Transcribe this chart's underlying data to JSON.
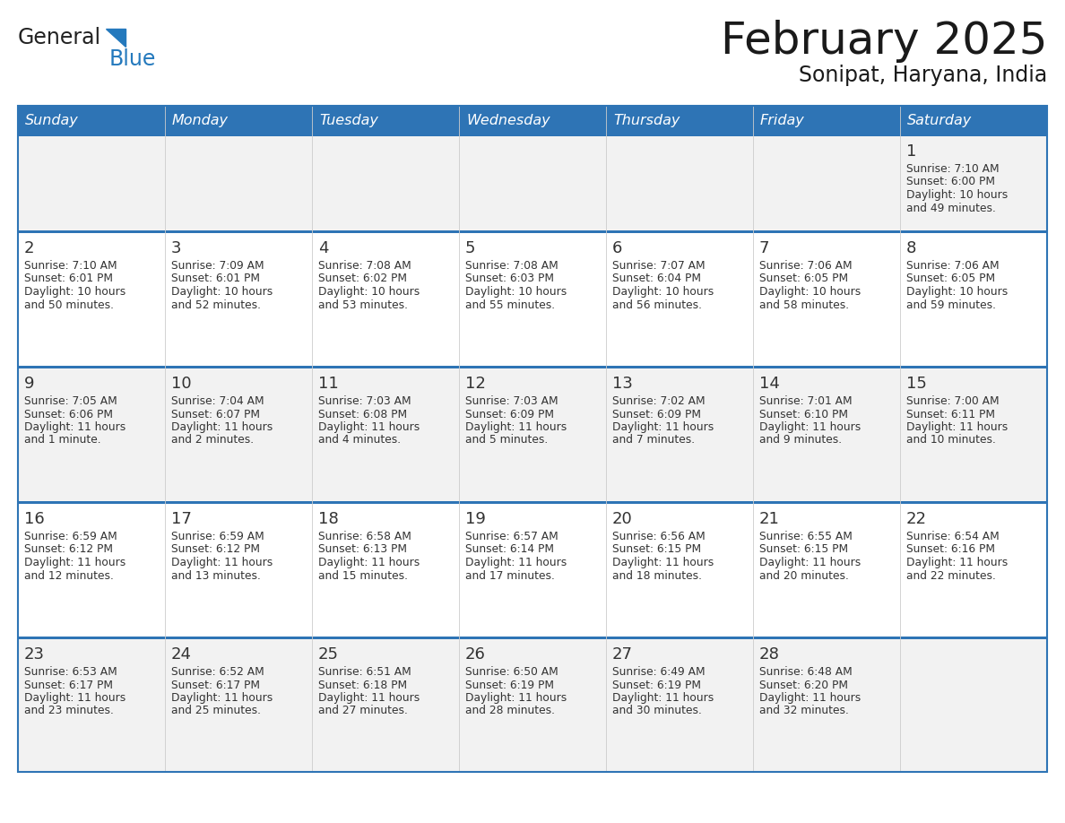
{
  "title": "February 2025",
  "subtitle": "Sonipat, Haryana, India",
  "header_bg": "#2E74B5",
  "header_text_color": "#FFFFFF",
  "row_bg_odd": "#F2F2F2",
  "row_bg_even": "#FFFFFF",
  "separator_color": "#2E74B5",
  "day_headers": [
    "Sunday",
    "Monday",
    "Tuesday",
    "Wednesday",
    "Thursday",
    "Friday",
    "Saturday"
  ],
  "days": [
    {
      "day": 1,
      "col": 6,
      "row": 0,
      "sunrise": "7:10 AM",
      "sunset": "6:00 PM",
      "daylight_line1": "10 hours",
      "daylight_line2": "and 49 minutes."
    },
    {
      "day": 2,
      "col": 0,
      "row": 1,
      "sunrise": "7:10 AM",
      "sunset": "6:01 PM",
      "daylight_line1": "10 hours",
      "daylight_line2": "and 50 minutes."
    },
    {
      "day": 3,
      "col": 1,
      "row": 1,
      "sunrise": "7:09 AM",
      "sunset": "6:01 PM",
      "daylight_line1": "10 hours",
      "daylight_line2": "and 52 minutes."
    },
    {
      "day": 4,
      "col": 2,
      "row": 1,
      "sunrise": "7:08 AM",
      "sunset": "6:02 PM",
      "daylight_line1": "10 hours",
      "daylight_line2": "and 53 minutes."
    },
    {
      "day": 5,
      "col": 3,
      "row": 1,
      "sunrise": "7:08 AM",
      "sunset": "6:03 PM",
      "daylight_line1": "10 hours",
      "daylight_line2": "and 55 minutes."
    },
    {
      "day": 6,
      "col": 4,
      "row": 1,
      "sunrise": "7:07 AM",
      "sunset": "6:04 PM",
      "daylight_line1": "10 hours",
      "daylight_line2": "and 56 minutes."
    },
    {
      "day": 7,
      "col": 5,
      "row": 1,
      "sunrise": "7:06 AM",
      "sunset": "6:05 PM",
      "daylight_line1": "10 hours",
      "daylight_line2": "and 58 minutes."
    },
    {
      "day": 8,
      "col": 6,
      "row": 1,
      "sunrise": "7:06 AM",
      "sunset": "6:05 PM",
      "daylight_line1": "10 hours",
      "daylight_line2": "and 59 minutes."
    },
    {
      "day": 9,
      "col": 0,
      "row": 2,
      "sunrise": "7:05 AM",
      "sunset": "6:06 PM",
      "daylight_line1": "11 hours",
      "daylight_line2": "and 1 minute."
    },
    {
      "day": 10,
      "col": 1,
      "row": 2,
      "sunrise": "7:04 AM",
      "sunset": "6:07 PM",
      "daylight_line1": "11 hours",
      "daylight_line2": "and 2 minutes."
    },
    {
      "day": 11,
      "col": 2,
      "row": 2,
      "sunrise": "7:03 AM",
      "sunset": "6:08 PM",
      "daylight_line1": "11 hours",
      "daylight_line2": "and 4 minutes."
    },
    {
      "day": 12,
      "col": 3,
      "row": 2,
      "sunrise": "7:03 AM",
      "sunset": "6:09 PM",
      "daylight_line1": "11 hours",
      "daylight_line2": "and 5 minutes."
    },
    {
      "day": 13,
      "col": 4,
      "row": 2,
      "sunrise": "7:02 AM",
      "sunset": "6:09 PM",
      "daylight_line1": "11 hours",
      "daylight_line2": "and 7 minutes."
    },
    {
      "day": 14,
      "col": 5,
      "row": 2,
      "sunrise": "7:01 AM",
      "sunset": "6:10 PM",
      "daylight_line1": "11 hours",
      "daylight_line2": "and 9 minutes."
    },
    {
      "day": 15,
      "col": 6,
      "row": 2,
      "sunrise": "7:00 AM",
      "sunset": "6:11 PM",
      "daylight_line1": "11 hours",
      "daylight_line2": "and 10 minutes."
    },
    {
      "day": 16,
      "col": 0,
      "row": 3,
      "sunrise": "6:59 AM",
      "sunset": "6:12 PM",
      "daylight_line1": "11 hours",
      "daylight_line2": "and 12 minutes."
    },
    {
      "day": 17,
      "col": 1,
      "row": 3,
      "sunrise": "6:59 AM",
      "sunset": "6:12 PM",
      "daylight_line1": "11 hours",
      "daylight_line2": "and 13 minutes."
    },
    {
      "day": 18,
      "col": 2,
      "row": 3,
      "sunrise": "6:58 AM",
      "sunset": "6:13 PM",
      "daylight_line1": "11 hours",
      "daylight_line2": "and 15 minutes."
    },
    {
      "day": 19,
      "col": 3,
      "row": 3,
      "sunrise": "6:57 AM",
      "sunset": "6:14 PM",
      "daylight_line1": "11 hours",
      "daylight_line2": "and 17 minutes."
    },
    {
      "day": 20,
      "col": 4,
      "row": 3,
      "sunrise": "6:56 AM",
      "sunset": "6:15 PM",
      "daylight_line1": "11 hours",
      "daylight_line2": "and 18 minutes."
    },
    {
      "day": 21,
      "col": 5,
      "row": 3,
      "sunrise": "6:55 AM",
      "sunset": "6:15 PM",
      "daylight_line1": "11 hours",
      "daylight_line2": "and 20 minutes."
    },
    {
      "day": 22,
      "col": 6,
      "row": 3,
      "sunrise": "6:54 AM",
      "sunset": "6:16 PM",
      "daylight_line1": "11 hours",
      "daylight_line2": "and 22 minutes."
    },
    {
      "day": 23,
      "col": 0,
      "row": 4,
      "sunrise": "6:53 AM",
      "sunset": "6:17 PM",
      "daylight_line1": "11 hours",
      "daylight_line2": "and 23 minutes."
    },
    {
      "day": 24,
      "col": 1,
      "row": 4,
      "sunrise": "6:52 AM",
      "sunset": "6:17 PM",
      "daylight_line1": "11 hours",
      "daylight_line2": "and 25 minutes."
    },
    {
      "day": 25,
      "col": 2,
      "row": 4,
      "sunrise": "6:51 AM",
      "sunset": "6:18 PM",
      "daylight_line1": "11 hours",
      "daylight_line2": "and 27 minutes."
    },
    {
      "day": 26,
      "col": 3,
      "row": 4,
      "sunrise": "6:50 AM",
      "sunset": "6:19 PM",
      "daylight_line1": "11 hours",
      "daylight_line2": "and 28 minutes."
    },
    {
      "day": 27,
      "col": 4,
      "row": 4,
      "sunrise": "6:49 AM",
      "sunset": "6:19 PM",
      "daylight_line1": "11 hours",
      "daylight_line2": "and 30 minutes."
    },
    {
      "day": 28,
      "col": 5,
      "row": 4,
      "sunrise": "6:48 AM",
      "sunset": "6:20 PM",
      "daylight_line1": "11 hours",
      "daylight_line2": "and 32 minutes."
    }
  ],
  "logo_color_general": "#222222",
  "logo_color_blue": "#2479BD"
}
